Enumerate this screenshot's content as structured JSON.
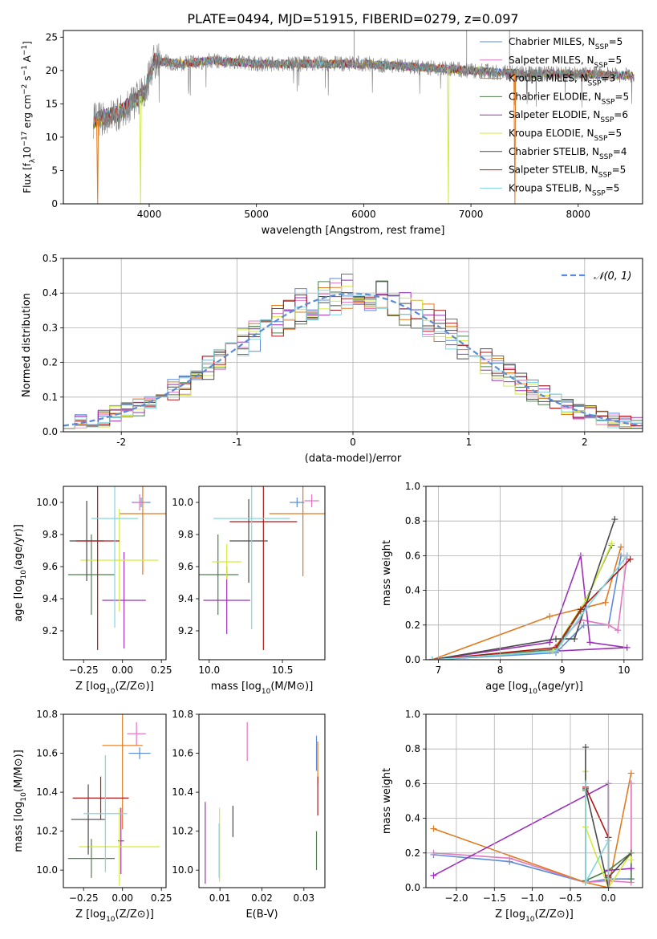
{
  "figure_title": "PLATE=0494, MJD=51915, FIBERID=0279, z=0.097",
  "models": [
    {
      "name": "Chabrier MILES",
      "nssp": "5",
      "color": "#5b8bd8"
    },
    {
      "name": "Salpeter MILES",
      "nssp": "5",
      "color": "#e377c2"
    },
    {
      "name": "Kroupa MILES",
      "nssp": "3",
      "color": "#e07b20"
    },
    {
      "name": "Chabrier ELODIE",
      "nssp": "5",
      "color": "#4f7f4f"
    },
    {
      "name": "Salpeter ELODIE",
      "nssp": "6",
      "color": "#9b30b8"
    },
    {
      "name": "Kroupa ELODIE",
      "nssp": "5",
      "color": "#d4ea3a"
    },
    {
      "name": "Chabrier STELIB",
      "nssp": "4",
      "color": "#4a4a4a"
    },
    {
      "name": "Salpeter STELIB",
      "nssp": "5",
      "color": "#b01818"
    },
    {
      "name": "Kroupa STELIB",
      "nssp": "5",
      "color": "#7fd6e0"
    }
  ],
  "chart_data": [
    {
      "id": "spectrum",
      "type": "line",
      "xlabel": "wavelength [Angstrom, rest frame]",
      "ylabel": "Flux [f_λ10^-17 erg cm^-2 s^-1 A^-1]",
      "xlim": [
        3200,
        8600
      ],
      "ylim": [
        0,
        26
      ],
      "xticks": [
        4000,
        5000,
        6000,
        7000,
        8000
      ],
      "yticks": [
        0,
        5,
        10,
        15,
        20,
        25
      ],
      "observed_color": "#808080",
      "legend_position": "top-right",
      "wavelength_range": [
        3480,
        8520
      ],
      "continuum": [
        [
          3480,
          12.5
        ],
        [
          3700,
          13.5
        ],
        [
          3950,
          16.5
        ],
        [
          4050,
          21.5
        ],
        [
          4300,
          21
        ],
        [
          4600,
          21.5
        ],
        [
          5000,
          21
        ],
        [
          5500,
          21
        ],
        [
          6000,
          21
        ],
        [
          6500,
          20.5
        ],
        [
          7000,
          20
        ],
        [
          7500,
          19.5
        ],
        [
          8000,
          19.5
        ],
        [
          8520,
          19.2
        ]
      ],
      "dropouts": [
        {
          "x": 3520,
          "color": "#e07b20"
        },
        {
          "x": 3920,
          "color": "#d4ea3a"
        },
        {
          "x": 6790,
          "color": "#d4ea3a"
        },
        {
          "x": 7410,
          "color": "#e07b20"
        }
      ],
      "spikes": [
        {
          "x": 5910,
          "y1": 21.5,
          "y2": 26
        },
        {
          "x": 6960,
          "y1": 20.5,
          "y2": 26
        },
        {
          "x": 7360,
          "y1": 19.5,
          "y2": 26
        }
      ]
    },
    {
      "id": "residual_histogram",
      "type": "line",
      "xlabel": "(data-model)/error",
      "ylabel": "Normed distribution",
      "xlim": [
        -2.5,
        2.5
      ],
      "ylim": [
        0,
        0.5
      ],
      "xticks": [
        -2,
        -1,
        0,
        1,
        2
      ],
      "yticks": [
        0.0,
        0.1,
        0.2,
        0.3,
        0.4,
        0.5
      ],
      "grid": true,
      "reference": {
        "label": "𝒩(0, 1)",
        "color": "#5b8bd8",
        "mean": 0,
        "sigma": 1
      },
      "legend_position": "top-right",
      "bin_width": 0.1
    },
    {
      "id": "age_vs_Z",
      "type": "scatter",
      "xlabel": "Z [log10(Z/Z⊙)]",
      "ylabel": "age [log10(age/yr)]",
      "xlim": [
        -0.38,
        0.28
      ],
      "ylim": [
        9.02,
        10.1
      ],
      "xticks": [
        -0.25,
        0.0,
        0.25
      ],
      "yticks": [
        9.2,
        9.4,
        9.6,
        9.8,
        10.0
      ],
      "points": [
        {
          "model": 0,
          "x": 0.12,
          "xerr": 0.06,
          "y": 10.0,
          "yerr": 0.03
        },
        {
          "model": 1,
          "x": 0.11,
          "xerr": 0.04,
          "y": 10.0,
          "yerr": 0.05
        },
        {
          "model": 2,
          "x": 0.13,
          "xerr": 0.15,
          "y": 9.93,
          "yerr": 0.38
        },
        {
          "model": 3,
          "x": -0.2,
          "xerr": 0.15,
          "y": 9.55,
          "yerr": 0.25
        },
        {
          "model": 4,
          "x": 0.01,
          "xerr": 0.14,
          "y": 9.39,
          "yerr": 0.3
        },
        {
          "model": 5,
          "x": -0.02,
          "xerr": 0.25,
          "y": 9.64,
          "yerr": 0.32
        },
        {
          "model": 6,
          "x": -0.23,
          "xerr": 0.11,
          "y": 9.76,
          "yerr": 0.25
        },
        {
          "model": 7,
          "x": -0.16,
          "xerr": 0.14,
          "y": 9.76,
          "yerr": 0.68
        },
        {
          "model": 8,
          "x": -0.05,
          "xerr": 0.15,
          "y": 9.9,
          "yerr": 0.68
        }
      ]
    },
    {
      "id": "age_vs_mass",
      "type": "scatter",
      "xlabel": "mass [log10(M/M⊙)]",
      "ylabel": "",
      "xlim": [
        9.93,
        10.79
      ],
      "ylim": [
        9.02,
        10.1
      ],
      "xticks": [
        10.0,
        10.5
      ],
      "yticks": [
        9.2,
        9.4,
        9.6,
        9.8,
        10.0
      ],
      "points": [
        {
          "model": 0,
          "x": 10.6,
          "xerr": 0.05,
          "y": 10.0,
          "yerr": 0.03
        },
        {
          "model": 1,
          "x": 10.7,
          "xerr": 0.05,
          "y": 10.01,
          "yerr": 0.04
        },
        {
          "model": 2,
          "x": 10.64,
          "xerr": 0.23,
          "y": 9.93,
          "yerr": 0.39
        },
        {
          "model": 3,
          "x": 10.06,
          "xerr": 0.14,
          "y": 9.55,
          "yerr": 0.25
        },
        {
          "model": 4,
          "x": 10.12,
          "xerr": 0.16,
          "y": 9.39,
          "yerr": 0.21
        },
        {
          "model": 5,
          "x": 10.12,
          "xerr": 0.1,
          "y": 9.63,
          "yerr": 0.11
        },
        {
          "model": 6,
          "x": 10.27,
          "xerr": 0.13,
          "y": 9.76,
          "yerr": 0.26
        },
        {
          "model": 7,
          "x": 10.37,
          "xerr": 0.23,
          "y": 9.88,
          "yerr": 0.8
        },
        {
          "model": 8,
          "x": 10.29,
          "xerr": 0.26,
          "y": 9.9,
          "yerr": 0.69
        }
      ]
    },
    {
      "id": "weight_vs_age",
      "type": "line",
      "xlabel": "age [log10(age/yr)]",
      "ylabel": "mass weight",
      "xlim": [
        6.8,
        10.3
      ],
      "ylim": [
        0,
        1
      ],
      "xticks": [
        7,
        8,
        9,
        10
      ],
      "yticks": [
        0.0,
        0.2,
        0.4,
        0.6,
        0.8,
        1.0
      ],
      "grid": true,
      "series": [
        {
          "model": 0,
          "x": [
            6.9,
            8.9,
            9.35,
            9.75,
            9.95,
            10.05
          ],
          "y": [
            0.0,
            0.04,
            0.2,
            0.2,
            0.6,
            0.6
          ]
        },
        {
          "model": 1,
          "x": [
            6.9,
            8.8,
            9.3,
            9.75,
            9.9,
            10.05
          ],
          "y": [
            0.0,
            0.05,
            0.23,
            0.2,
            0.17,
            0.6
          ]
        },
        {
          "model": 2,
          "x": [
            6.9,
            8.8,
            9.7,
            9.95
          ],
          "y": [
            0.0,
            0.25,
            0.33,
            0.65
          ]
        },
        {
          "model": 3,
          "x": [
            6.9,
            8.9,
            9.3,
            9.8
          ],
          "y": [
            0.0,
            0.06,
            0.28,
            0.66
          ]
        },
        {
          "model": 4,
          "x": [
            6.9,
            8.8,
            9.3,
            9.45,
            10.05,
            8.9
          ],
          "y": [
            0.0,
            0.1,
            0.6,
            0.1,
            0.07,
            0.05
          ]
        },
        {
          "model": 5,
          "x": [
            6.9,
            8.85,
            9.4,
            9.8
          ],
          "y": [
            0.0,
            0.05,
            0.35,
            0.67
          ]
        },
        {
          "model": 6,
          "x": [
            6.9,
            8.9,
            9.2,
            9.85
          ],
          "y": [
            0.0,
            0.12,
            0.12,
            0.81
          ]
        },
        {
          "model": 7,
          "x": [
            6.9,
            8.9,
            9.3,
            10.1
          ],
          "y": [
            0.0,
            0.07,
            0.29,
            0.58
          ]
        },
        {
          "model": 8,
          "x": [
            6.9,
            8.9,
            9.4,
            10.05
          ],
          "y": [
            0.0,
            0.05,
            0.3,
            0.6
          ]
        }
      ]
    },
    {
      "id": "mass_vs_Z",
      "type": "scatter",
      "xlabel": "Z [log10(Z/Z⊙)]",
      "ylabel": "mass [log10(M/M⊙)]",
      "xlim": [
        -0.38,
        0.28
      ],
      "ylim": [
        9.91,
        10.8
      ],
      "xticks": [
        -0.25,
        0.0,
        0.25
      ],
      "yticks": [
        10.0,
        10.2,
        10.4,
        10.6,
        10.8
      ],
      "points": [
        {
          "model": 0,
          "x": 0.11,
          "xerr": 0.07,
          "y": 10.6,
          "yerr": 0.03
        },
        {
          "model": 1,
          "x": 0.09,
          "xerr": 0.06,
          "y": 10.7,
          "yerr": 0.06
        },
        {
          "model": 2,
          "x": 0.0,
          "xerr": 0.13,
          "y": 10.64,
          "yerr": 0.43
        },
        {
          "model": 3,
          "x": -0.2,
          "xerr": 0.15,
          "y": 10.06,
          "yerr": 0.1
        },
        {
          "model": 4,
          "x": -0.01,
          "xerr": 0.02,
          "y": 10.15,
          "yerr": 0.17
        },
        {
          "model": 5,
          "x": -0.02,
          "xerr": 0.26,
          "y": 10.12,
          "yerr": 0.2
        },
        {
          "model": 6,
          "x": -0.22,
          "xerr": 0.11,
          "y": 10.26,
          "yerr": 0.18
        },
        {
          "model": 7,
          "x": -0.14,
          "xerr": 0.18,
          "y": 10.37,
          "yerr": 0.11
        },
        {
          "model": 8,
          "x": -0.11,
          "xerr": 0.14,
          "y": 10.29,
          "yerr": 0.3
        }
      ]
    },
    {
      "id": "mass_vs_ebv",
      "type": "scatter",
      "xlabel": "E(B-V)",
      "ylabel": "",
      "xlim": [
        0.005,
        0.035
      ],
      "ylim": [
        9.91,
        10.8
      ],
      "xticks": [
        0.01,
        0.02,
        0.03
      ],
      "yticks": [
        10.0,
        10.2,
        10.4,
        10.6,
        10.8
      ],
      "points": [
        {
          "model": 0,
          "x": 0.033,
          "xerr": 0,
          "y": 10.6,
          "yerr": 0.09
        },
        {
          "model": 1,
          "x": 0.0165,
          "xerr": 0,
          "y": 10.66,
          "yerr": 0.1
        },
        {
          "model": 2,
          "x": 0.0333,
          "xerr": 0,
          "y": 10.55,
          "yerr": 0.11
        },
        {
          "model": 3,
          "x": 0.033,
          "xerr": 0,
          "y": 10.1,
          "yerr": 0.1
        },
        {
          "model": 4,
          "x": 0.0065,
          "xerr": 0,
          "y": 10.14,
          "yerr": 0.21
        },
        {
          "model": 5,
          "x": 0.0099,
          "xerr": 0,
          "y": 10.13,
          "yerr": 0.19
        },
        {
          "model": 6,
          "x": 0.0131,
          "xerr": 0,
          "y": 10.25,
          "yerr": 0.08
        },
        {
          "model": 7,
          "x": 0.0333,
          "xerr": 0,
          "y": 10.38,
          "yerr": 0.1
        },
        {
          "model": 8,
          "x": 0.0098,
          "xerr": 0,
          "y": 10.1,
          "yerr": 0.14
        }
      ]
    },
    {
      "id": "weight_vs_Z",
      "type": "line",
      "xlabel": "Z [log10(Z/Z⊙)]",
      "ylabel": "mass weight",
      "xlim": [
        -2.4,
        0.45
      ],
      "ylim": [
        0,
        1
      ],
      "xticks": [
        -2.0,
        -1.5,
        -1.0,
        -0.5,
        0.0
      ],
      "yticks": [
        0.0,
        0.2,
        0.4,
        0.6,
        0.8,
        1.0
      ],
      "grid": true,
      "series": [
        {
          "model": 0,
          "x": [
            -2.3,
            -1.3,
            -0.3,
            0.0,
            0.3,
            0.3
          ],
          "y": [
            0.19,
            0.15,
            0.03,
            0.05,
            0.05,
            0.6
          ]
        },
        {
          "model": 1,
          "x": [
            -2.3,
            -1.3,
            -0.3,
            0.0,
            0.3,
            0.3
          ],
          "y": [
            0.2,
            0.17,
            0.03,
            0.04,
            0.03,
            0.6
          ]
        },
        {
          "model": 2,
          "x": [
            -2.3,
            -0.3,
            0.0,
            0.3
          ],
          "y": [
            0.34,
            0.03,
            0.0,
            0.66
          ]
        },
        {
          "model": 3,
          "x": [
            -0.3,
            -0.3,
            0.0,
            0.3,
            0.3
          ],
          "y": [
            0.56,
            0.04,
            0.1,
            0.2,
            0.05
          ]
        },
        {
          "model": 4,
          "x": [
            -2.3,
            0.0,
            0.0,
            0.0,
            0.3
          ],
          "y": [
            0.07,
            0.6,
            0.06,
            0.1,
            0.11
          ]
        },
        {
          "model": 5,
          "x": [
            -0.3,
            -0.3,
            0.0,
            0.3,
            0.3
          ],
          "y": [
            0.67,
            0.35,
            0.0,
            0.2,
            0.16
          ]
        },
        {
          "model": 6,
          "x": [
            -0.3,
            -0.3,
            0.0,
            0.0,
            0.3
          ],
          "y": [
            0.81,
            0.57,
            0.0,
            0.06,
            0.2
          ]
        },
        {
          "model": 7,
          "x": [
            -0.3,
            0.0,
            0.0
          ],
          "y": [
            0.58,
            0.29,
            0.07
          ]
        },
        {
          "model": 8,
          "x": [
            -0.3,
            -0.3,
            0.0,
            0.0
          ],
          "y": [
            0.6,
            0.03,
            0.27,
            0.05
          ]
        }
      ]
    }
  ]
}
